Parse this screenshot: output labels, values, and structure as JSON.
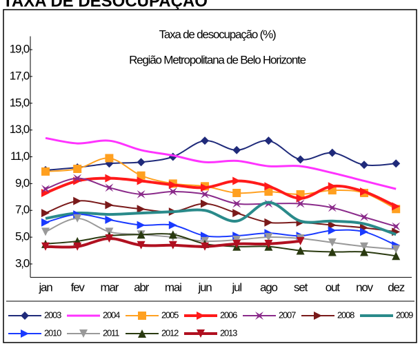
{
  "chart_data": {
    "type": "line",
    "page_title": "TAXA DE DESOCUPAÇÃO",
    "title": "Taxa de desocupação (%)",
    "subtitle": "Região Metropolitana de Belo Horizonte",
    "categories": [
      "jan",
      "fev",
      "mar",
      "abr",
      "mai",
      "jun",
      "jul",
      "ago",
      "set",
      "out",
      "nov",
      "dez"
    ],
    "ylim": [
      2,
      20
    ],
    "yticks": [
      {
        "value": 3,
        "label": "3,0"
      },
      {
        "value": 5,
        "label": "5,0"
      },
      {
        "value": 7,
        "label": "7,0"
      },
      {
        "value": 9,
        "label": "9,0"
      },
      {
        "value": 11,
        "label": "11,0"
      },
      {
        "value": 13,
        "label": "13,0"
      },
      {
        "value": 15,
        "label": "15,0"
      },
      {
        "value": 17,
        "label": "17,0"
      },
      {
        "value": 19,
        "label": "19,0"
      }
    ],
    "grid": false,
    "series": [
      {
        "name": "2003",
        "color": "#1f2a7a",
        "marker": "diamond",
        "width": 2,
        "values": [
          10.0,
          10.2,
          10.5,
          10.6,
          11.0,
          12.2,
          11.5,
          12.2,
          10.8,
          11.3,
          10.4,
          10.5
        ]
      },
      {
        "name": "2004",
        "color": "#ff33ff",
        "marker": "none",
        "width": 3,
        "values": [
          12.4,
          12.0,
          12.2,
          11.5,
          11.1,
          10.6,
          10.7,
          10.3,
          10.3,
          9.8,
          9.2,
          8.6
        ]
      },
      {
        "name": "2005",
        "color": "#ffa020",
        "marker": "square",
        "width": 2,
        "values": [
          9.9,
          10.1,
          10.9,
          9.6,
          9.0,
          8.8,
          8.3,
          8.4,
          8.2,
          8.5,
          8.3,
          7.1
        ]
      },
      {
        "name": "2006",
        "color": "#ff1a1a",
        "marker": "triangle-right",
        "width": 4,
        "values": [
          8.3,
          9.2,
          9.4,
          9.2,
          8.9,
          8.7,
          9.2,
          8.8,
          7.9,
          8.8,
          8.4,
          7.3
        ]
      },
      {
        "name": "2007",
        "color": "#8a2a8a",
        "marker": "star",
        "width": 2,
        "values": [
          8.6,
          9.4,
          8.7,
          8.2,
          8.4,
          8.2,
          7.5,
          7.5,
          7.5,
          7.2,
          6.5,
          5.8
        ]
      },
      {
        "name": "2008",
        "color": "#7a1a1a",
        "marker": "triangle-right",
        "width": 2,
        "values": [
          6.8,
          7.7,
          7.4,
          7.1,
          6.9,
          7.5,
          6.8,
          6.1,
          6.1,
          5.9,
          5.7,
          5.4
        ]
      },
      {
        "name": "2009",
        "color": "#2a8a8a",
        "marker": "none",
        "width": 4,
        "values": [
          6.4,
          6.8,
          6.7,
          6.8,
          6.9,
          7.0,
          6.2,
          7.6,
          6.2,
          6.2,
          6.0,
          5.2
        ]
      },
      {
        "name": "2010",
        "color": "#1a3aff",
        "marker": "triangle-right",
        "width": 2,
        "values": [
          6.1,
          6.7,
          6.3,
          5.9,
          5.9,
          5.1,
          5.1,
          5.3,
          5.1,
          5.5,
          5.4,
          4.4
        ]
      },
      {
        "name": "2011",
        "color": "#999999",
        "marker": "triangle-down",
        "width": 2,
        "values": [
          5.4,
          6.4,
          5.4,
          5.2,
          5.0,
          4.7,
          4.8,
          5.0,
          4.9,
          4.6,
          4.3,
          4.1
        ]
      },
      {
        "name": "2012",
        "color": "#2a3a10",
        "marker": "triangle-up",
        "width": 2,
        "values": [
          4.5,
          4.7,
          5.1,
          5.2,
          5.2,
          4.5,
          4.3,
          4.3,
          4.0,
          3.9,
          3.9,
          3.6
        ]
      },
      {
        "name": "2013",
        "color": "#b01020",
        "marker": "triangle-down",
        "width": 4,
        "values": [
          4.3,
          4.3,
          4.9,
          4.4,
          4.4,
          4.3,
          4.5,
          4.5,
          4.7,
          null,
          null,
          null
        ]
      }
    ]
  }
}
